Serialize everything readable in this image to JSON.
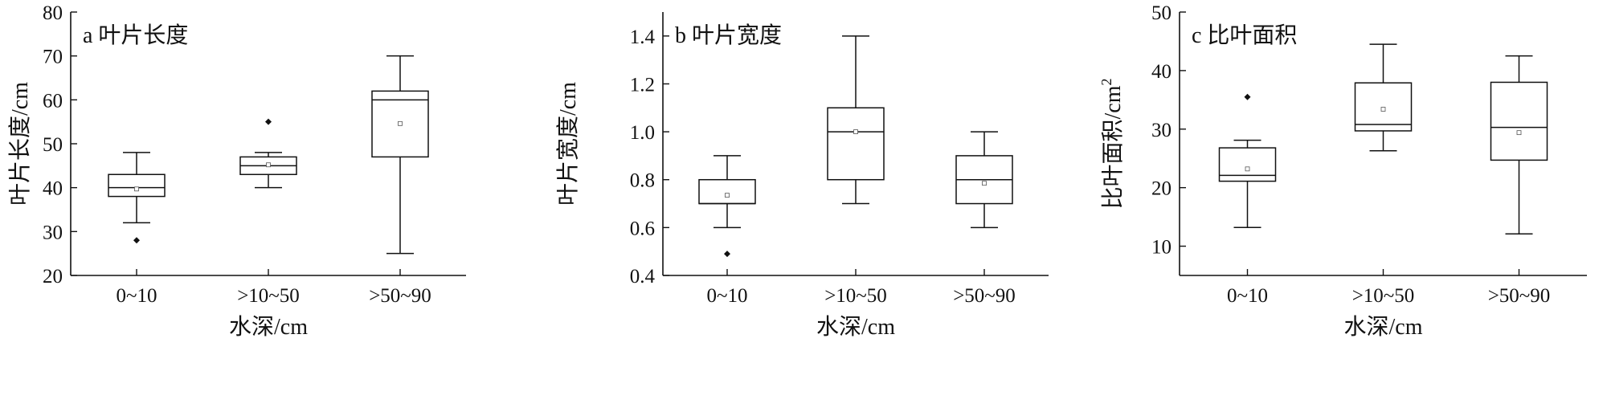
{
  "chart_data": [
    {
      "type": "box",
      "panel_label": "a 叶片长度",
      "xlabel": "水深/cm",
      "ylabel": "叶片长度/cm",
      "ylim": [
        20,
        80
      ],
      "yticks": [
        "20",
        "30",
        "40",
        "50",
        "60",
        "70",
        "80"
      ],
      "categories": [
        "0~10",
        ">10~50",
        ">50~90"
      ],
      "boxes": [
        {
          "min": 32,
          "q1": 38,
          "median": 40,
          "q3": 43,
          "max": 48,
          "mean": 39.7,
          "outliers": [
            28
          ]
        },
        {
          "min": 40,
          "q1": 43,
          "median": 45,
          "q3": 47,
          "max": 48,
          "mean": 45.2,
          "outliers": [
            55
          ]
        },
        {
          "min": 25,
          "q1": 47,
          "median": 60,
          "q3": 62,
          "max": 70,
          "mean": 54.6,
          "outliers": []
        }
      ]
    },
    {
      "type": "box",
      "panel_label": "b 叶片宽度",
      "xlabel": "水深/cm",
      "ylabel": "叶片宽度/cm",
      "ylim": [
        0.4,
        1.5
      ],
      "yticks": [
        "0.4",
        "0.6",
        "0.8",
        "1.0",
        "1.2",
        "1.4"
      ],
      "categories": [
        "0~10",
        ">10~50",
        ">50~90"
      ],
      "boxes": [
        {
          "min": 0.6,
          "q1": 0.7,
          "median": 0.7,
          "q3": 0.8,
          "max": 0.9,
          "mean": 0.735,
          "outliers": [
            0.49
          ]
        },
        {
          "min": 0.7,
          "q1": 0.8,
          "median": 1.0,
          "q3": 1.1,
          "max": 1.4,
          "mean": 1.0,
          "outliers": []
        },
        {
          "min": 0.6,
          "q1": 0.7,
          "median": 0.8,
          "q3": 0.9,
          "max": 1.0,
          "mean": 0.785,
          "outliers": []
        }
      ]
    },
    {
      "type": "box",
      "panel_label": "c 比叶面积",
      "xlabel": "水深/cm",
      "ylabel": "比叶面积/cm",
      "ylabel_sup": "2",
      "ylim": [
        5,
        50
      ],
      "yticks": [
        "10",
        "20",
        "30",
        "40",
        "50"
      ],
      "categories": [
        "0~10",
        ">10~50",
        ">50~90"
      ],
      "boxes": [
        {
          "min": 13.2,
          "q1": 21.1,
          "median": 22.1,
          "q3": 26.8,
          "max": 28.1,
          "mean": 23.2,
          "outliers": [
            35.5
          ]
        },
        {
          "min": 26.3,
          "q1": 29.7,
          "median": 30.8,
          "q3": 37.9,
          "max": 44.5,
          "mean": 33.4,
          "outliers": []
        },
        {
          "min": 12.1,
          "q1": 24.7,
          "median": 30.3,
          "q3": 38.0,
          "max": 42.5,
          "mean": 29.4,
          "outliers": []
        }
      ]
    }
  ]
}
